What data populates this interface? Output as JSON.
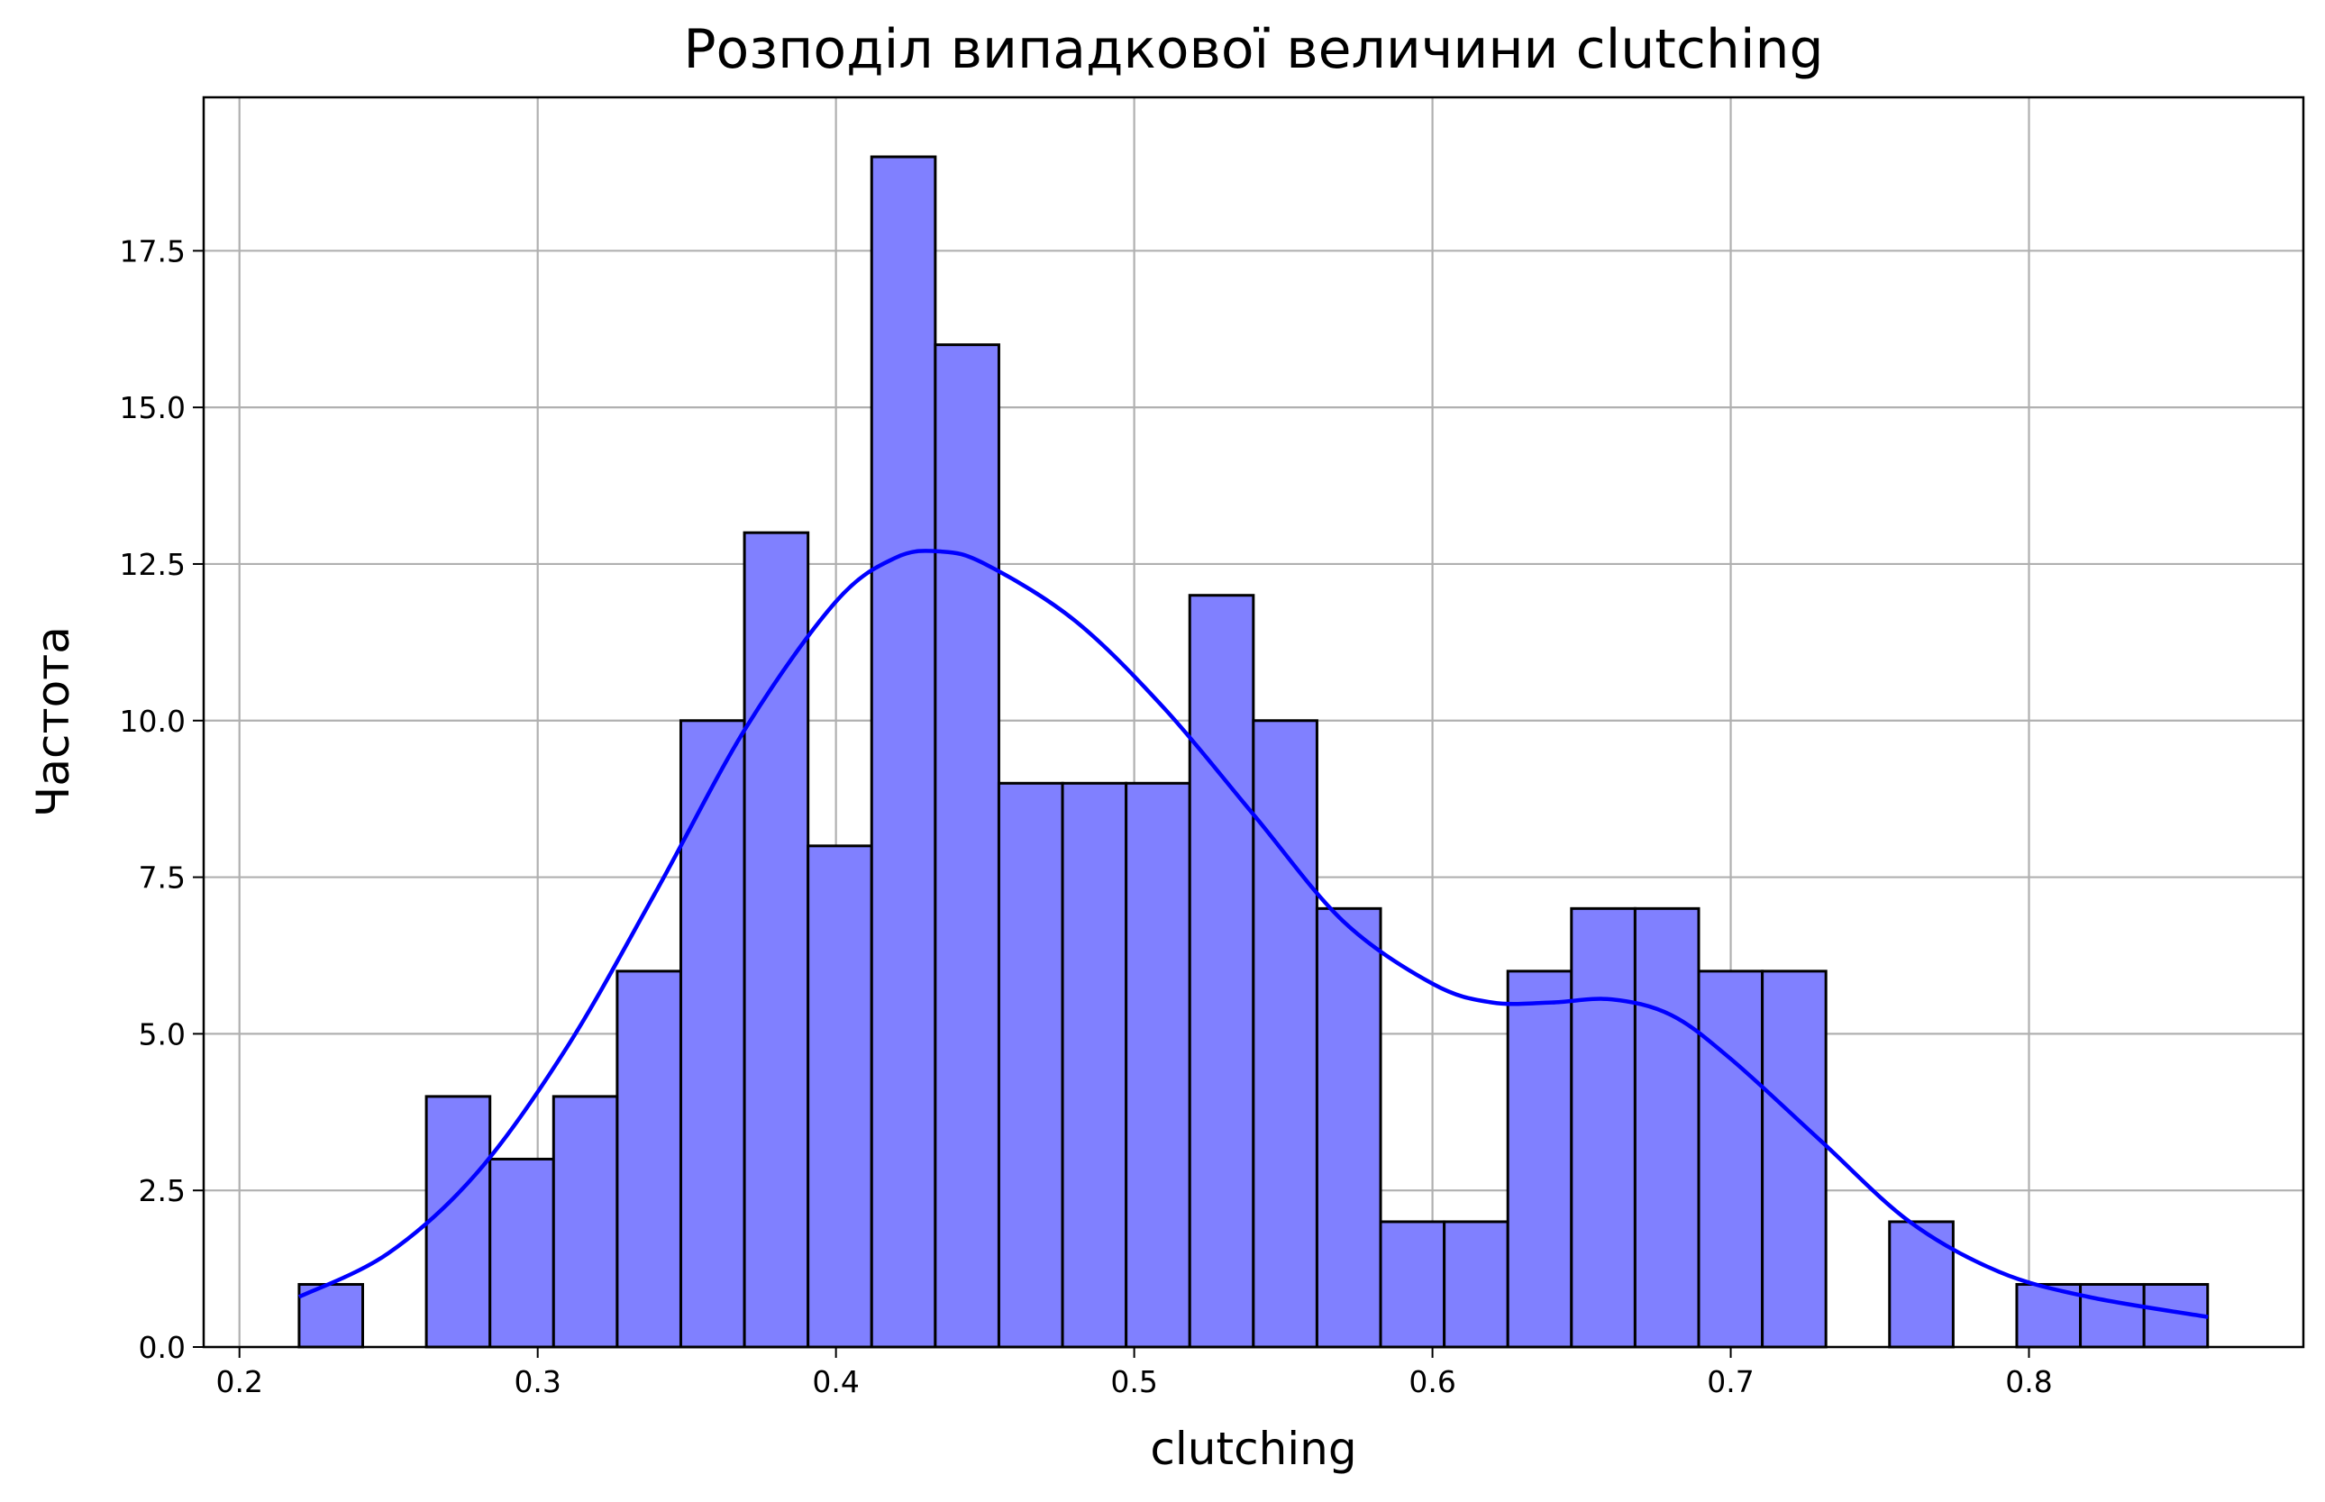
{
  "chart_data": {
    "type": "bar",
    "title": "Розподіл випадкової величини clutching",
    "xlabel": "clutching",
    "ylabel": "Частота",
    "bin_start": 0.22,
    "bin_width": 0.02133,
    "values": [
      1,
      0,
      4,
      3,
      4,
      6,
      10,
      13,
      8,
      19,
      16,
      9,
      9,
      9,
      12,
      10,
      7,
      2,
      2,
      6,
      7,
      7,
      6,
      6,
      0,
      2,
      0,
      1,
      1,
      1
    ],
    "xlim": [
      0.188,
      0.892
    ],
    "ylim": [
      0,
      19.95
    ],
    "xticks": [
      0.2,
      0.3,
      0.4,
      0.5,
      0.6,
      0.7,
      0.8
    ],
    "xtick_labels": [
      "0.2",
      "0.3",
      "0.4",
      "0.5",
      "0.6",
      "0.7",
      "0.8"
    ],
    "yticks": [
      0,
      2.5,
      5,
      7.5,
      10,
      12.5,
      15,
      17.5
    ],
    "ytick_labels": [
      "0.0",
      "2.5",
      "5.0",
      "7.5",
      "10.0",
      "12.5",
      "15.0",
      "17.5"
    ],
    "grid": true,
    "kde": {
      "x": [
        0.22,
        0.25,
        0.28,
        0.31,
        0.34,
        0.37,
        0.4,
        0.42,
        0.435,
        0.45,
        0.48,
        0.51,
        0.54,
        0.57,
        0.6,
        0.62,
        0.64,
        0.66,
        0.68,
        0.7,
        0.73,
        0.76,
        0.79,
        0.82,
        0.86
      ],
      "y": [
        0.8,
        1.5,
        2.8,
        4.8,
        7.3,
        9.9,
        11.9,
        12.6,
        12.7,
        12.5,
        11.6,
        10.2,
        8.5,
        6.8,
        5.8,
        5.5,
        5.5,
        5.55,
        5.3,
        4.6,
        3.3,
        2.0,
        1.2,
        0.8,
        0.48
      ]
    },
    "colors": {
      "bar_fill": "#8080ff",
      "bar_edge": "#000000",
      "kde_line": "#0000ff",
      "grid": "#b0b0b0"
    }
  }
}
